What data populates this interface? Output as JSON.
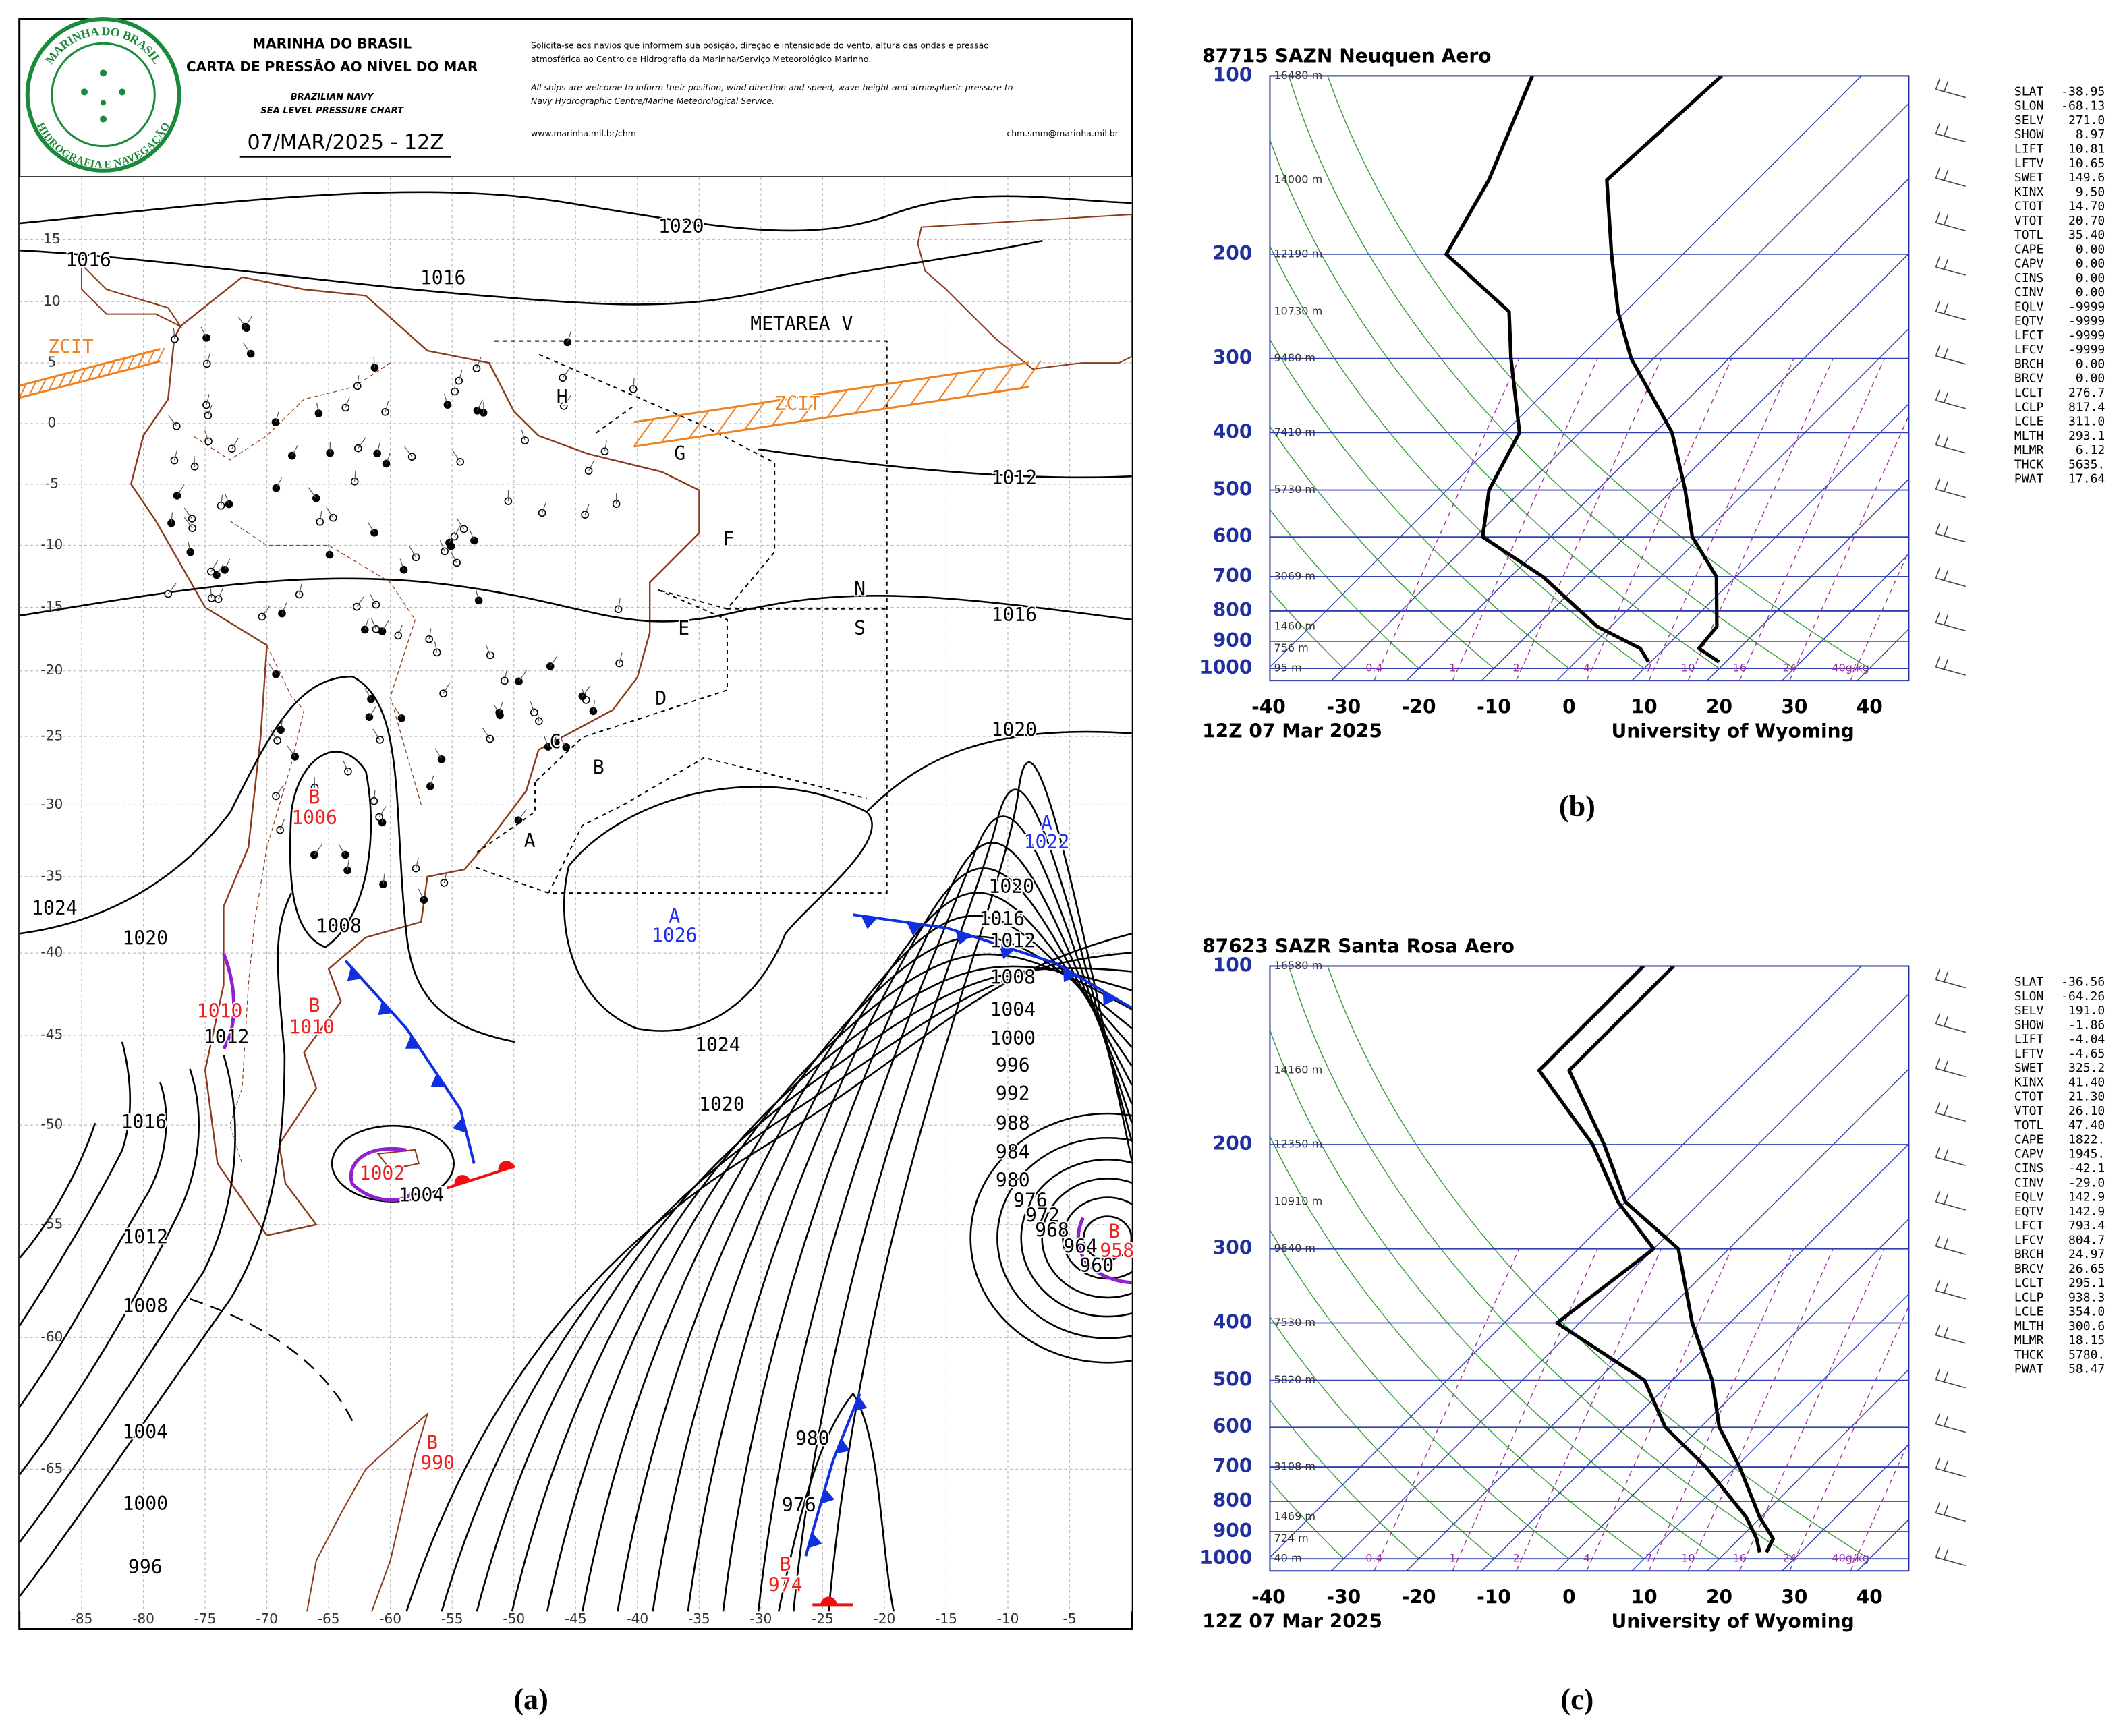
{
  "panel_a": {
    "label": "(a)",
    "header": {
      "logo_top": "MARINHA DO BRASIL",
      "logo_bottom": "HIDROGRAFIA E NAVEGAÇÃO",
      "title": "MARINHA DO BRASIL",
      "subtitle": "CARTA DE PRESSÃO AO NÍVEL DO MAR",
      "en_title": "BRAZILIAN NAVY",
      "en_subtitle": "SEA LEVEL PRESSURE CHART",
      "date": "07/MAR/2025 - 12Z",
      "notice_pt": [
        "Solicita-se aos navios que informem sua posição, direção e intensidade do vento, altura das ondas e pressão",
        "atmosférica ao Centro de Hidrografia da Marinha/Serviço Meteorológico Marinho."
      ],
      "notice_en": [
        "All ships are welcome to inform their position, wind direction and speed, wave height and atmospheric pressure to",
        "Navy Hydrographic Centre/Marine Meteorological Service."
      ],
      "website": "www.marinha.mil.br/chm",
      "email": "chm.smm@marinha.mil.br"
    },
    "lon_ticks": [
      -85,
      -80,
      -75,
      -70,
      -65,
      -60,
      -55,
      -50,
      -45,
      -40,
      -35,
      -30,
      -25,
      -20,
      -15,
      -10,
      -5
    ],
    "lat_ticks": [
      15,
      10,
      5,
      0,
      -5,
      -10,
      -15,
      -20,
      -25,
      -30,
      -35,
      -40,
      -45,
      -50,
      -55,
      -60,
      -65
    ],
    "labels": [
      "1020",
      "1016",
      "1016",
      "METAREA V",
      "ZCIT",
      "ZCIT",
      "H",
      "G",
      "1012",
      "F",
      "N",
      "S",
      "E",
      "1016",
      "D",
      "1020",
      "C",
      "B",
      "A",
      "A",
      "1022",
      "B",
      "1006",
      "1024",
      "1020",
      "1008",
      "A",
      "1026",
      "1020",
      "1016",
      "1012",
      "1008",
      "1004",
      "1000",
      "996",
      "992",
      "988",
      "984",
      "980",
      "976",
      "972",
      "968",
      "964",
      "960",
      "B",
      "958",
      "B",
      "1010",
      "1010",
      "1012",
      "1024",
      "1020",
      "1016",
      "1002",
      "1004",
      "1012",
      "1008",
      "B",
      "990",
      "980",
      "1004",
      "976",
      "1000",
      "B",
      "974",
      "996"
    ]
  },
  "soundings": [
    {
      "label": "(b)",
      "title": "87715 SAZN Neuquen Aero",
      "footer_left": "12Z 07 Mar 2025",
      "footer_right": "University of Wyoming",
      "pressure_ticks": [
        100,
        200,
        300,
        400,
        500,
        600,
        700,
        800,
        900,
        1000
      ],
      "temperature_ticks": [
        -40,
        -30,
        -20,
        -10,
        0,
        10,
        20,
        30,
        40
      ],
      "heights": [
        {
          "p": 100,
          "label": "16480 m"
        },
        {
          "p": 150,
          "label": "14000 m"
        },
        {
          "p": 200,
          "label": "12190 m"
        },
        {
          "p": 250,
          "label": "10730 m"
        },
        {
          "p": 300,
          "label": "9480 m"
        },
        {
          "p": 400,
          "label": "7410 m"
        },
        {
          "p": 500,
          "label": "5730 m"
        },
        {
          "p": 700,
          "label": "3069 m"
        },
        {
          "p": 850,
          "label": "1460 m"
        },
        {
          "p": 925,
          "label": "756 m"
        },
        {
          "p": 1000,
          "label": "95 m"
        }
      ],
      "mixing_ratio_labels": [
        "0.4",
        "1",
        "2",
        "4",
        "7",
        "10",
        "16",
        "24",
        "40g/kg"
      ],
      "profile": {
        "pressure": [
          975,
          925,
          850,
          700,
          600,
          500,
          400,
          300,
          250,
          200,
          150,
          100
        ],
        "temperature": [
          19.1,
          14.6,
          14.1,
          7.4,
          -1.1,
          -8.3,
          -17.7,
          -33,
          -41,
          -49.5,
          -60,
          -58.6
        ],
        "dewpoint": [
          9.7,
          6.8,
          -1.8,
          -15.7,
          -29,
          -34.4,
          -38,
          -49,
          -55.5,
          -71.5,
          -75.7,
          -83.8
        ]
      },
      "indices": [
        [
          "SLAT",
          "-38.95"
        ],
        [
          "SLON",
          "-68.13"
        ],
        [
          "SELV",
          "271.0"
        ],
        [
          "SHOW",
          "8.97"
        ],
        [
          "LIFT",
          "10.81"
        ],
        [
          "LFTV",
          "10.65"
        ],
        [
          "SWET",
          "149.6"
        ],
        [
          "KINX",
          "9.50"
        ],
        [
          "CTOT",
          "14.70"
        ],
        [
          "VTOT",
          "20.70"
        ],
        [
          "TOTL",
          "35.40"
        ],
        [
          "CAPE",
          "0.00"
        ],
        [
          "CAPV",
          "0.00"
        ],
        [
          "CINS",
          "0.00"
        ],
        [
          "CINV",
          "0.00"
        ],
        [
          "EQLV",
          "-9999"
        ],
        [
          "EQTV",
          "-9999"
        ],
        [
          "LFCT",
          "-9999"
        ],
        [
          "LFCV",
          "-9999"
        ],
        [
          "BRCH",
          "0.00"
        ],
        [
          "BRCV",
          "0.00"
        ],
        [
          "LCLT",
          "276.7"
        ],
        [
          "LCLP",
          "817.4"
        ],
        [
          "LCLE",
          "311.0"
        ],
        [
          "MLTH",
          "293.1"
        ],
        [
          "MLMR",
          "6.12"
        ],
        [
          "THCK",
          "5635."
        ],
        [
          "PWAT",
          "17.64"
        ]
      ]
    },
    {
      "label": "(c)",
      "title": "87623 SAZR Santa Rosa Aero",
      "footer_left": "12Z 07 Mar 2025",
      "footer_right": "University of Wyoming",
      "pressure_ticks": [
        100,
        200,
        300,
        400,
        500,
        600,
        700,
        800,
        900,
        1000
      ],
      "temperature_ticks": [
        -40,
        -30,
        -20,
        -10,
        0,
        10,
        20,
        30,
        40
      ],
      "heights": [
        {
          "p": 100,
          "label": "16580 m"
        },
        {
          "p": 150,
          "label": "14160 m"
        },
        {
          "p": 200,
          "label": "12350 m"
        },
        {
          "p": 250,
          "label": "10910 m"
        },
        {
          "p": 300,
          "label": "9640 m"
        },
        {
          "p": 400,
          "label": "7530 m"
        },
        {
          "p": 500,
          "label": "5820 m"
        },
        {
          "p": 700,
          "label": "3108 m"
        },
        {
          "p": 850,
          "label": "1469 m"
        },
        {
          "p": 925,
          "label": "724 m"
        },
        {
          "p": 1000,
          "label": "40 m"
        }
      ],
      "mixing_ratio_labels": [
        "0.4",
        "1",
        "2",
        "4",
        "7",
        "10",
        "16",
        "24",
        "40g/kg"
      ],
      "profile": {
        "pressure": [
          975,
          925,
          850,
          700,
          600,
          500,
          400,
          300,
          250,
          200,
          150,
          100
        ],
        "temperature": [
          25.4,
          24.5,
          19.8,
          10.5,
          2.5,
          -4.7,
          -15,
          -26.7,
          -40,
          -50.5,
          -65,
          -65
        ],
        "dewpoint": [
          24.5,
          22.3,
          18,
          6,
          -4.7,
          -13.7,
          -33,
          -30,
          -41,
          -52,
          -69,
          -69
        ]
      },
      "indices": [
        [
          "SLAT",
          "-36.56"
        ],
        [
          "SLON",
          "-64.26"
        ],
        [
          "SELV",
          "191.0"
        ],
        [
          "SHOW",
          "-1.86"
        ],
        [
          "LIFT",
          "-4.04"
        ],
        [
          "LFTV",
          "-4.65"
        ],
        [
          "SWET",
          "325.2"
        ],
        [
          "KINX",
          "41.40"
        ],
        [
          "CTOT",
          "21.30"
        ],
        [
          "VTOT",
          "26.10"
        ],
        [
          "TOTL",
          "47.40"
        ],
        [
          "CAPE",
          "1822."
        ],
        [
          "CAPV",
          "1945."
        ],
        [
          "CINS",
          "-42.1"
        ],
        [
          "CINV",
          "-29.0"
        ],
        [
          "EQLV",
          "142.9"
        ],
        [
          "EQTV",
          "142.9"
        ],
        [
          "LFCT",
          "793.4"
        ],
        [
          "LFCV",
          "804.7"
        ],
        [
          "BRCH",
          "24.97"
        ],
        [
          "BRCV",
          "26.65"
        ],
        [
          "LCLT",
          "295.1"
        ],
        [
          "LCLP",
          "938.3"
        ],
        [
          "LCLE",
          "354.0"
        ],
        [
          "MLTH",
          "300.6"
        ],
        [
          "MLMR",
          "18.15"
        ],
        [
          "THCK",
          "5780."
        ],
        [
          "PWAT",
          "58.47"
        ]
      ]
    }
  ]
}
